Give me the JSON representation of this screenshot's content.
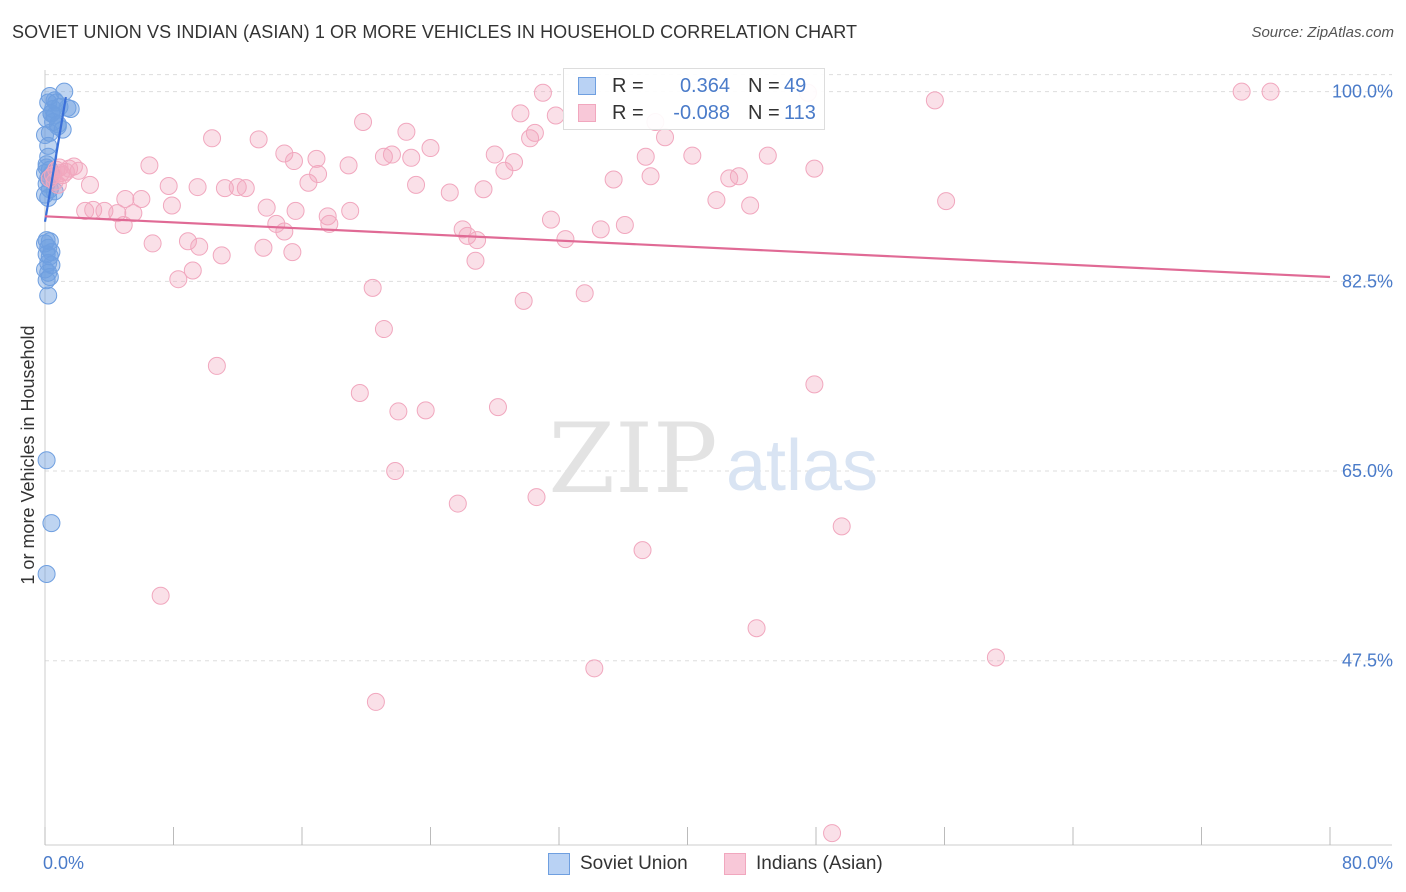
{
  "title": "SOVIET UNION VS INDIAN (ASIAN) 1 OR MORE VEHICLES IN HOUSEHOLD CORRELATION CHART",
  "source": "Source: ZipAtlas.com",
  "watermark": {
    "zip": "ZIP",
    "atlas": "atlas"
  },
  "legend_stats": [
    {
      "r_label": "R =",
      "r_value": "0.364",
      "n_label": "N =",
      "n_value": "49"
    },
    {
      "r_label": "R =",
      "r_value": "-0.088",
      "n_label": "N =",
      "n_value": "113"
    }
  ],
  "colors": {
    "soviet": "#6f9fe0",
    "soviet_line": "#3a6fd8",
    "indian": "#f1a7be",
    "indian_line": "#e06a95",
    "axis_text": "#4a7bc9",
    "grid": "#dddddd"
  },
  "chart_data": {
    "type": "scatter",
    "title": "SOVIET UNION VS INDIAN (ASIAN) 1 OR MORE VEHICLES IN HOUSEHOLD CORRELATION CHART",
    "xlabel": "",
    "ylabel": "1 or more Vehicles in Household",
    "xlim": [
      0,
      80
    ],
    "ylim": [
      30.5,
      102
    ],
    "x_tick_labels": [
      "0.0%",
      "80.0%"
    ],
    "y_ticks": [
      47.5,
      65.0,
      82.5,
      100.0
    ],
    "y_tick_labels": [
      "47.5%",
      "65.0%",
      "82.5%",
      "100.0%"
    ],
    "grid": true,
    "legend_position": "bottom-center",
    "series": [
      {
        "name": "Soviet Union",
        "points": [
          [
            0.0,
            92.5
          ],
          [
            0.1,
            93.3
          ],
          [
            0.2,
            95.0
          ],
          [
            0.0,
            96.0
          ],
          [
            0.3,
            96.2
          ],
          [
            0.1,
            97.5
          ],
          [
            0.4,
            98.0
          ],
          [
            0.5,
            98.4
          ],
          [
            0.2,
            99.0
          ],
          [
            0.6,
            99.2
          ],
          [
            0.3,
            99.6
          ],
          [
            1.2,
            100.0
          ],
          [
            0.7,
            99.0
          ],
          [
            0.9,
            98.6
          ],
          [
            1.4,
            98.5
          ],
          [
            1.6,
            98.4
          ],
          [
            0.4,
            98.0
          ],
          [
            0.6,
            97.8
          ],
          [
            0.8,
            97.0
          ],
          [
            1.1,
            96.5
          ],
          [
            0.2,
            94.0
          ],
          [
            0.1,
            93.0
          ],
          [
            0.3,
            92.8
          ],
          [
            0.4,
            92.4
          ],
          [
            0.2,
            92.0
          ],
          [
            0.1,
            91.5
          ],
          [
            0.3,
            91.0
          ],
          [
            0.0,
            90.5
          ],
          [
            0.2,
            90.2
          ],
          [
            0.6,
            90.8
          ],
          [
            0.1,
            86.3
          ],
          [
            0.3,
            86.2
          ],
          [
            0.0,
            86.0
          ],
          [
            0.2,
            85.6
          ],
          [
            0.4,
            85.2
          ],
          [
            0.1,
            85.0
          ],
          [
            0.3,
            84.8
          ],
          [
            0.2,
            84.2
          ],
          [
            0.4,
            84.0
          ],
          [
            0.0,
            83.6
          ],
          [
            0.2,
            83.3
          ],
          [
            0.3,
            82.9
          ],
          [
            0.1,
            82.6
          ],
          [
            0.2,
            81.2
          ],
          [
            0.1,
            66.0
          ],
          [
            0.4,
            60.2
          ],
          [
            0.1,
            55.5
          ],
          [
            0.5,
            97.2
          ],
          [
            0.8,
            96.8
          ]
        ],
        "trend": {
          "x": [
            0.0,
            1.3
          ],
          "y": [
            88.0,
            99.5
          ]
        }
      },
      {
        "name": "Indians (Asian)",
        "points": [
          [
            0.3,
            92.0
          ],
          [
            0.5,
            92.3
          ],
          [
            0.7,
            92.8
          ],
          [
            0.9,
            93.0
          ],
          [
            1.0,
            92.5
          ],
          [
            1.1,
            92.3
          ],
          [
            1.3,
            92.6
          ],
          [
            1.5,
            92.9
          ],
          [
            1.8,
            93.1
          ],
          [
            2.1,
            92.7
          ],
          [
            0.6,
            91.7
          ],
          [
            0.8,
            91.4
          ],
          [
            2.5,
            89.0
          ],
          [
            3.0,
            89.1
          ],
          [
            3.7,
            89.0
          ],
          [
            4.5,
            88.8
          ],
          [
            5.5,
            88.8
          ],
          [
            2.8,
            91.4
          ],
          [
            5.0,
            90.1
          ],
          [
            6.0,
            90.1
          ],
          [
            6.5,
            93.2
          ],
          [
            7.7,
            91.3
          ],
          [
            9.5,
            91.2
          ],
          [
            11.2,
            91.1
          ],
          [
            12.0,
            91.2
          ],
          [
            12.5,
            91.1
          ],
          [
            7.9,
            89.5
          ],
          [
            13.8,
            89.3
          ],
          [
            4.9,
            87.7
          ],
          [
            6.7,
            86.0
          ],
          [
            8.9,
            86.2
          ],
          [
            9.6,
            85.7
          ],
          [
            11.0,
            84.9
          ],
          [
            13.6,
            85.6
          ],
          [
            14.4,
            87.8
          ],
          [
            14.9,
            87.1
          ],
          [
            15.6,
            89.0
          ],
          [
            15.4,
            85.2
          ],
          [
            17.6,
            88.5
          ],
          [
            16.4,
            91.6
          ],
          [
            17.7,
            87.8
          ],
          [
            17.0,
            92.4
          ],
          [
            16.9,
            93.8
          ],
          [
            18.9,
            93.2
          ],
          [
            19.0,
            89.0
          ],
          [
            10.4,
            95.7
          ],
          [
            13.3,
            95.6
          ],
          [
            14.9,
            94.3
          ],
          [
            15.5,
            93.6
          ],
          [
            19.8,
            97.2
          ],
          [
            21.1,
            94.0
          ],
          [
            21.6,
            94.2
          ],
          [
            22.5,
            96.3
          ],
          [
            22.8,
            93.9
          ],
          [
            23.1,
            91.4
          ],
          [
            24.0,
            94.8
          ],
          [
            25.2,
            90.7
          ],
          [
            26.0,
            87.3
          ],
          [
            26.3,
            86.7
          ],
          [
            26.9,
            86.3
          ],
          [
            26.8,
            84.4
          ],
          [
            27.3,
            91.0
          ],
          [
            28.0,
            94.2
          ],
          [
            28.6,
            92.7
          ],
          [
            29.2,
            93.5
          ],
          [
            29.8,
            80.7
          ],
          [
            29.6,
            98.0
          ],
          [
            30.2,
            95.7
          ],
          [
            30.5,
            96.2
          ],
          [
            31.0,
            99.9
          ],
          [
            31.5,
            88.2
          ],
          [
            31.8,
            97.8
          ],
          [
            32.4,
            86.4
          ],
          [
            33.6,
            81.4
          ],
          [
            34.6,
            87.3
          ],
          [
            35.4,
            91.9
          ],
          [
            36.1,
            87.7
          ],
          [
            37.4,
            94.0
          ],
          [
            37.7,
            92.2
          ],
          [
            38.0,
            97.2
          ],
          [
            38.6,
            95.8
          ],
          [
            40.3,
            94.1
          ],
          [
            41.8,
            90.0
          ],
          [
            42.6,
            92.0
          ],
          [
            43.2,
            92.2
          ],
          [
            43.9,
            89.5
          ],
          [
            45.0,
            94.1
          ],
          [
            47.5,
            99.9
          ],
          [
            47.9,
            92.9
          ],
          [
            55.4,
            99.2
          ],
          [
            56.1,
            89.9
          ],
          [
            74.5,
            100.0
          ],
          [
            76.3,
            100.0
          ],
          [
            8.3,
            82.7
          ],
          [
            9.2,
            83.5
          ],
          [
            10.7,
            74.7
          ],
          [
            20.4,
            81.9
          ],
          [
            21.1,
            78.1
          ],
          [
            19.6,
            72.2
          ],
          [
            22.0,
            70.5
          ],
          [
            23.7,
            70.6
          ],
          [
            28.2,
            70.9
          ],
          [
            21.8,
            65.0
          ],
          [
            25.7,
            62.0
          ],
          [
            30.6,
            62.6
          ],
          [
            37.2,
            57.7
          ],
          [
            49.6,
            59.9
          ],
          [
            47.9,
            73.0
          ],
          [
            7.2,
            53.5
          ],
          [
            44.3,
            50.5
          ],
          [
            34.2,
            46.8
          ],
          [
            59.2,
            47.8
          ],
          [
            20.6,
            43.7
          ],
          [
            49.0,
            31.6
          ]
        ],
        "trend": {
          "x": [
            0.0,
            80.0
          ],
          "y": [
            88.5,
            82.9
          ]
        }
      }
    ]
  }
}
